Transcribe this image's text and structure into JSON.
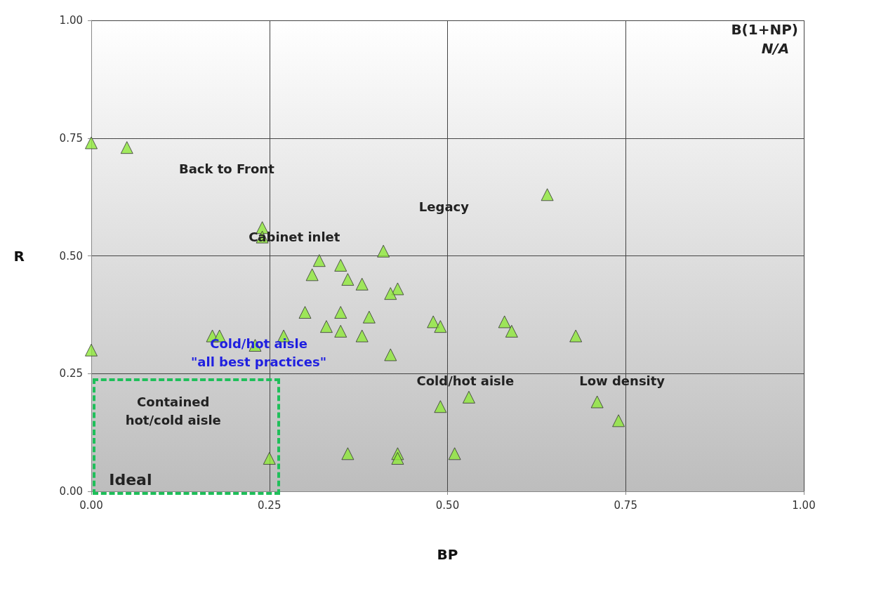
{
  "chart_data": {
    "type": "scatter",
    "xlabel": "BP",
    "ylabel": "R",
    "xlim": [
      0,
      1
    ],
    "ylim": [
      0,
      1
    ],
    "xticks": [
      {
        "value": 0,
        "label": "0.00"
      },
      {
        "value": 0.25,
        "label": "0.25"
      },
      {
        "value": 0.5,
        "label": "0.50"
      },
      {
        "value": 0.75,
        "label": "0.75"
      },
      {
        "value": 1,
        "label": "1.00"
      }
    ],
    "yticks": [
      {
        "value": 0,
        "label": "0.00"
      },
      {
        "value": 0.25,
        "label": "0.25"
      },
      {
        "value": 0.5,
        "label": "0.50"
      },
      {
        "value": 0.75,
        "label": "0.75"
      },
      {
        "value": 1,
        "label": "1.00"
      }
    ],
    "grid": true,
    "marker": "triangle",
    "series": [
      {
        "color": "#8fe83a",
        "x": [
          0,
          0.05,
          0.24,
          0.24,
          0.64,
          0.41,
          0.32,
          0.35,
          0.31,
          0.36,
          0.38,
          0.43,
          0.42,
          0.3,
          0.35,
          0.39,
          0.48,
          0.58,
          0.33,
          0.49,
          0.35,
          0.59,
          0.17,
          0.18,
          0.27,
          0.38,
          0.68,
          0,
          0.23,
          0.42,
          0.53,
          0.49,
          0.71,
          0.74,
          0.36,
          0.51,
          0.43,
          0.43,
          0.25
        ],
        "values": [
          0.74,
          0.73,
          0.56,
          0.54,
          0.63,
          0.51,
          0.49,
          0.48,
          0.46,
          0.45,
          0.44,
          0.43,
          0.42,
          0.38,
          0.38,
          0.37,
          0.36,
          0.36,
          0.35,
          0.35,
          0.34,
          0.34,
          0.33,
          0.33,
          0.33,
          0.33,
          0.33,
          0.3,
          0.31,
          0.29,
          0.2,
          0.18,
          0.19,
          0.15,
          0.08,
          0.08,
          0.08,
          0.07,
          0.07
        ]
      }
    ],
    "annotations": [
      "B(1+NP)",
      "N/A",
      "Back to Front",
      "Legacy",
      "Cabinet inlet",
      "Cold/hot aisle\n\"all best practices\"",
      "Cold/hot aisle",
      "Low density",
      "Contained\nhot/cold aisle",
      "Ideal"
    ]
  }
}
